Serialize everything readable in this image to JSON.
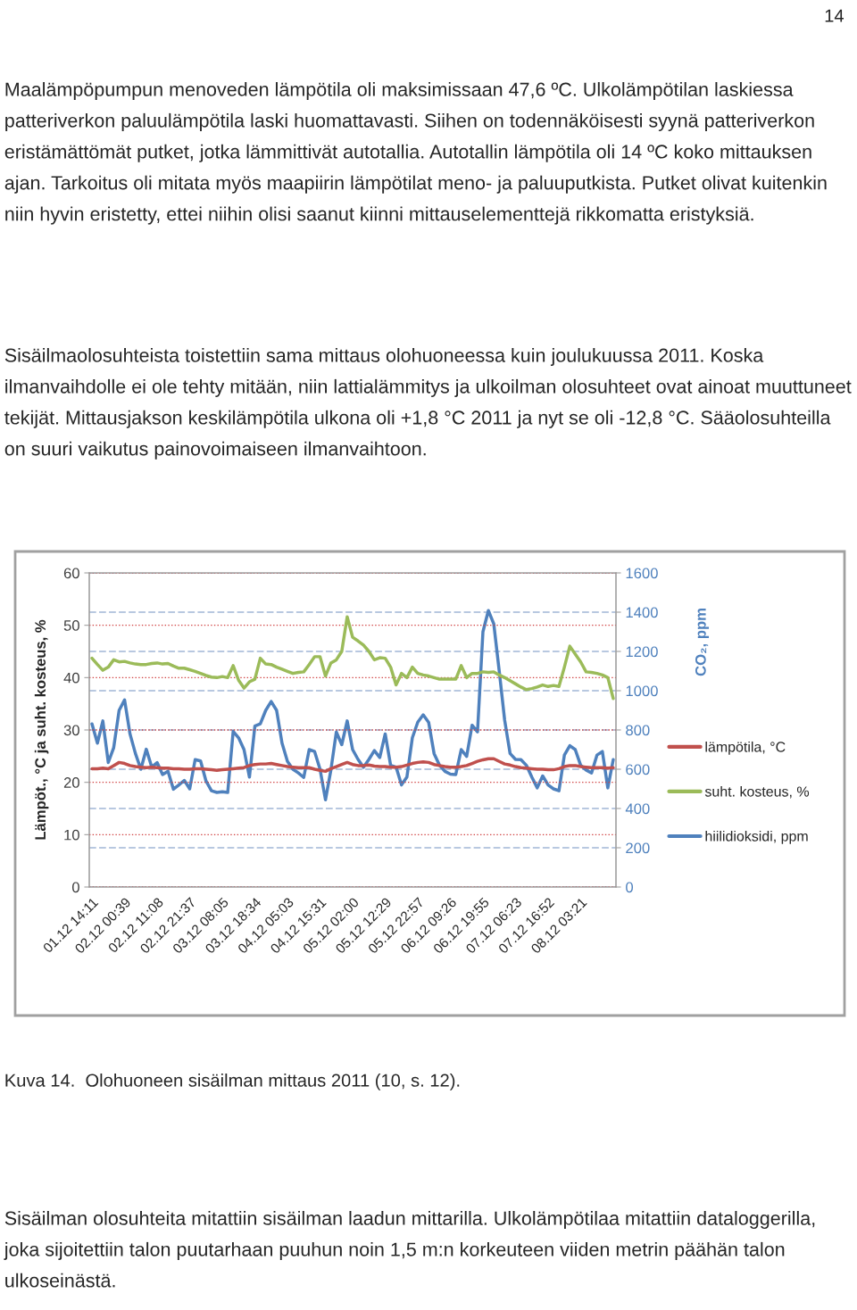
{
  "chart_data": {
    "type": "line",
    "annotations": [
      "14",
      "Maalämpöpumpun menoveden lämpötila oli maksimissaan 47,6 ºC. Ulkolämpötilan laskiessa patteriverkon paluulämpötila laski huomattavasti. Siihen on todennäköisesti syynä patteriverkon eristämättömät putket, jotka lämmittivät autotallia. Autotallin lämpötila oli 14 ºC koko mittauksen ajan. Tarkoitus oli mitata myös maapiirin lämpötilat meno- ja paluuputkista. Putket olivat kuitenkin niin hyvin eristetty, ettei niihin olisi saanut kiinni mittauselementtejä rikkomatta eristyksiä.",
      "Sisäilmaolosuhteista toistettiin sama mittaus olohuoneessa kuin joulukuussa 2011. Koska ilmanvaihdolle ei ole tehty mitään, niin lattialämmitys ja ulkoilman olosuhteet ovat ainoat muuttuneet tekijät. Mittausjakson keskilämpötila ulkona oli +1,8 °C 2011 ja nyt se oli -12,8 °C. Sääolosuhteilla on suuri vaikutus painovoimaiseen ilmanvaihtoon.",
      "Kuva 14.  Olohuoneen sisäilman mittaus 2011 (10, s. 12).",
      "Sisäilman olosuhteita mitattiin sisäilman laadun mittarilla. Ulkolämpötilaa mitattiin dataloggerilla, joka sijoitettiin talon puutarhaan puuhun noin 1,5 m:n korkeuteen viiden metrin päähän talon ulkoseinästä."
    ],
    "ylabel": "Lämpöt., °C ja suht. kosteus, %",
    "y2label": "CO₂, ppm",
    "categories": [
      "01.12 14:11",
      null,
      null,
      null,
      null,
      null,
      "02.12 00:39",
      null,
      null,
      null,
      null,
      null,
      "02.12 11:08",
      null,
      null,
      null,
      null,
      null,
      "02.12 21:37",
      null,
      null,
      null,
      null,
      null,
      "03.12 08:05",
      null,
      null,
      null,
      null,
      null,
      "03.12 18:34",
      null,
      null,
      null,
      null,
      null,
      "04.12 05:03",
      null,
      null,
      null,
      null,
      null,
      "04.12 15:31",
      null,
      null,
      null,
      null,
      null,
      "05.12 02:00",
      null,
      null,
      null,
      null,
      null,
      "05.12 12:29",
      null,
      null,
      null,
      null,
      null,
      "05.12 22:57",
      null,
      null,
      null,
      null,
      null,
      "06.12 09:26",
      null,
      null,
      null,
      null,
      null,
      "06.12 19:55",
      null,
      null,
      null,
      null,
      null,
      "07.12 06:23",
      null,
      null,
      null,
      null,
      null,
      "07.12 16:52",
      null,
      null,
      null,
      null,
      null,
      "08.12 03:21",
      null,
      null,
      null,
      null,
      null,
      null
    ],
    "series": [
      {
        "name": "lämpötila, °C",
        "color": "#c0504d",
        "values": [
          22.6,
          22.6,
          22.7,
          22.6,
          23.2,
          23.8,
          23.6,
          23.2,
          23.0,
          22.9,
          22.8,
          22.9,
          22.8,
          22.7,
          22.7,
          22.6,
          22.6,
          22.5,
          22.5,
          22.6,
          22.6,
          22.5,
          22.4,
          22.3,
          22.4,
          22.5,
          22.6,
          22.7,
          22.8,
          23.2,
          23.4,
          23.5,
          23.5,
          23.6,
          23.4,
          23.2,
          23.0,
          22.9,
          22.8,
          22.8,
          22.8,
          22.5,
          22.3,
          22.1,
          22.6,
          23.0,
          23.4,
          23.8,
          23.4,
          23.2,
          23.2,
          23.3,
          23.1,
          23.0,
          23.0,
          22.9,
          22.9,
          23.0,
          23.3,
          23.6,
          23.8,
          23.9,
          23.8,
          23.4,
          23.2,
          23.0,
          22.9,
          22.9,
          23.0,
          23.2,
          23.6,
          24.0,
          24.3,
          24.5,
          24.5,
          24.0,
          23.5,
          23.3,
          23.0,
          22.8,
          22.7,
          22.6,
          22.5,
          22.5,
          22.4,
          22.4,
          22.6,
          23.0,
          23.2,
          23.2,
          23.0,
          22.9,
          22.8,
          22.8,
          22.8,
          22.7,
          22.8
        ]
      },
      {
        "name": "suht. kosteus, %",
        "color": "#9bbb59",
        "values": [
          43.7,
          42.5,
          41.4,
          42.0,
          43.4,
          43.0,
          43.1,
          42.8,
          42.6,
          42.5,
          42.5,
          42.7,
          42.8,
          42.6,
          42.7,
          42.2,
          41.8,
          41.8,
          41.5,
          41.2,
          40.8,
          40.4,
          40.1,
          40.0,
          40.2,
          40.0,
          42.3,
          39.5,
          38.0,
          39.2,
          39.7,
          43.7,
          42.6,
          42.5,
          42.0,
          41.6,
          41.2,
          40.8,
          41.0,
          41.1,
          42.5,
          44.0,
          44.0,
          40.3,
          42.8,
          43.4,
          45.0,
          51.6,
          47.7,
          47.0,
          46.2,
          45.0,
          43.4,
          43.8,
          43.7,
          42.0,
          38.6,
          40.8,
          40.0,
          42.0,
          40.8,
          40.5,
          40.3,
          40.0,
          39.7,
          39.7,
          39.7,
          39.7,
          42.3,
          40.0,
          40.8,
          40.8,
          41.1,
          41.0,
          41.1,
          40.5,
          40.0,
          39.4,
          38.8,
          38.2,
          37.7,
          37.9,
          38.2,
          38.6,
          38.3,
          38.5,
          38.3,
          42.0,
          46.0,
          44.5,
          43.0,
          41.1,
          41.0,
          40.8,
          40.5,
          40.0,
          36.0
        ]
      },
      {
        "name": "hiilidioksidi, ppm",
        "color": "#4f81bd",
        "axis": "y2",
        "values": [
          831,
          733,
          846,
          634,
          710,
          900,
          953,
          780,
          680,
          600,
          702,
          611,
          634,
          573,
          590,
          498,
          520,
          543,
          500,
          649,
          642,
          540,
          490,
          482,
          485,
          482,
          793,
          760,
          700,
          560,
          820,
          831,
          900,
          945,
          900,
          733,
          640,
          600,
          581,
          558,
          700,
          690,
          600,
          444,
          596,
          790,
          725,
          846,
          700,
          650,
          610,
          650,
          695,
          660,
          780,
          620,
          611,
          520,
          560,
          760,
          840,
          877,
          839,
          680,
          620,
          589,
          575,
          573,
          700,
          665,
          824,
          790,
          1300,
          1408,
          1340,
          1100,
          850,
          680,
          650,
          649,
          620,
          560,
          505,
          566,
          520,
          500,
          490,
          672,
          720,
          700,
          620,
          596,
          581,
          672,
          690,
          505,
          649
        ]
      }
    ],
    "ylim": [
      0,
      60
    ],
    "yticks": [
      0,
      10,
      20,
      30,
      40,
      50,
      60
    ],
    "y2lim": [
      0,
      1600
    ],
    "y2ticks": [
      0,
      200,
      400,
      600,
      800,
      1000,
      1200,
      1400,
      1600
    ],
    "grid": true,
    "legend": "right"
  }
}
